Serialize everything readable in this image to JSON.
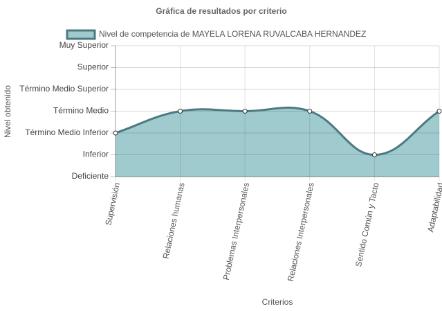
{
  "chart_data": {
    "type": "line",
    "title": "Gráfica de resultados por criterio",
    "x_label": "Criterios",
    "y_label": "Nivel obtenido",
    "categories": [
      "Supervisión",
      "Relaciones humanas",
      "Problemas Interpersonales",
      "Relaciones Interpersonales",
      "Sentido Común y Tacto",
      "Adaptabilidad"
    ],
    "series": [
      {
        "name": "Nivel de competencia de MAYELA LORENA RUVALCABA HERNANDEZ",
        "color": "#4d7a80",
        "fill_color": "#9fcbcf",
        "values": [
          3,
          4,
          4,
          4,
          2,
          4
        ]
      }
    ],
    "ylim": [
      1,
      7
    ],
    "yticks": [
      {
        "value": 1,
        "label": "Deficiente"
      },
      {
        "value": 2,
        "label": "Inferior"
      },
      {
        "value": 3,
        "label": "Término Medio Inferior"
      },
      {
        "value": 4,
        "label": "Término Medio"
      },
      {
        "value": 5,
        "label": "Término Medio Superior"
      },
      {
        "value": 6,
        "label": "Superior"
      },
      {
        "value": 7,
        "label": "Muy Superior"
      }
    ],
    "grid": true,
    "legend": "top"
  }
}
